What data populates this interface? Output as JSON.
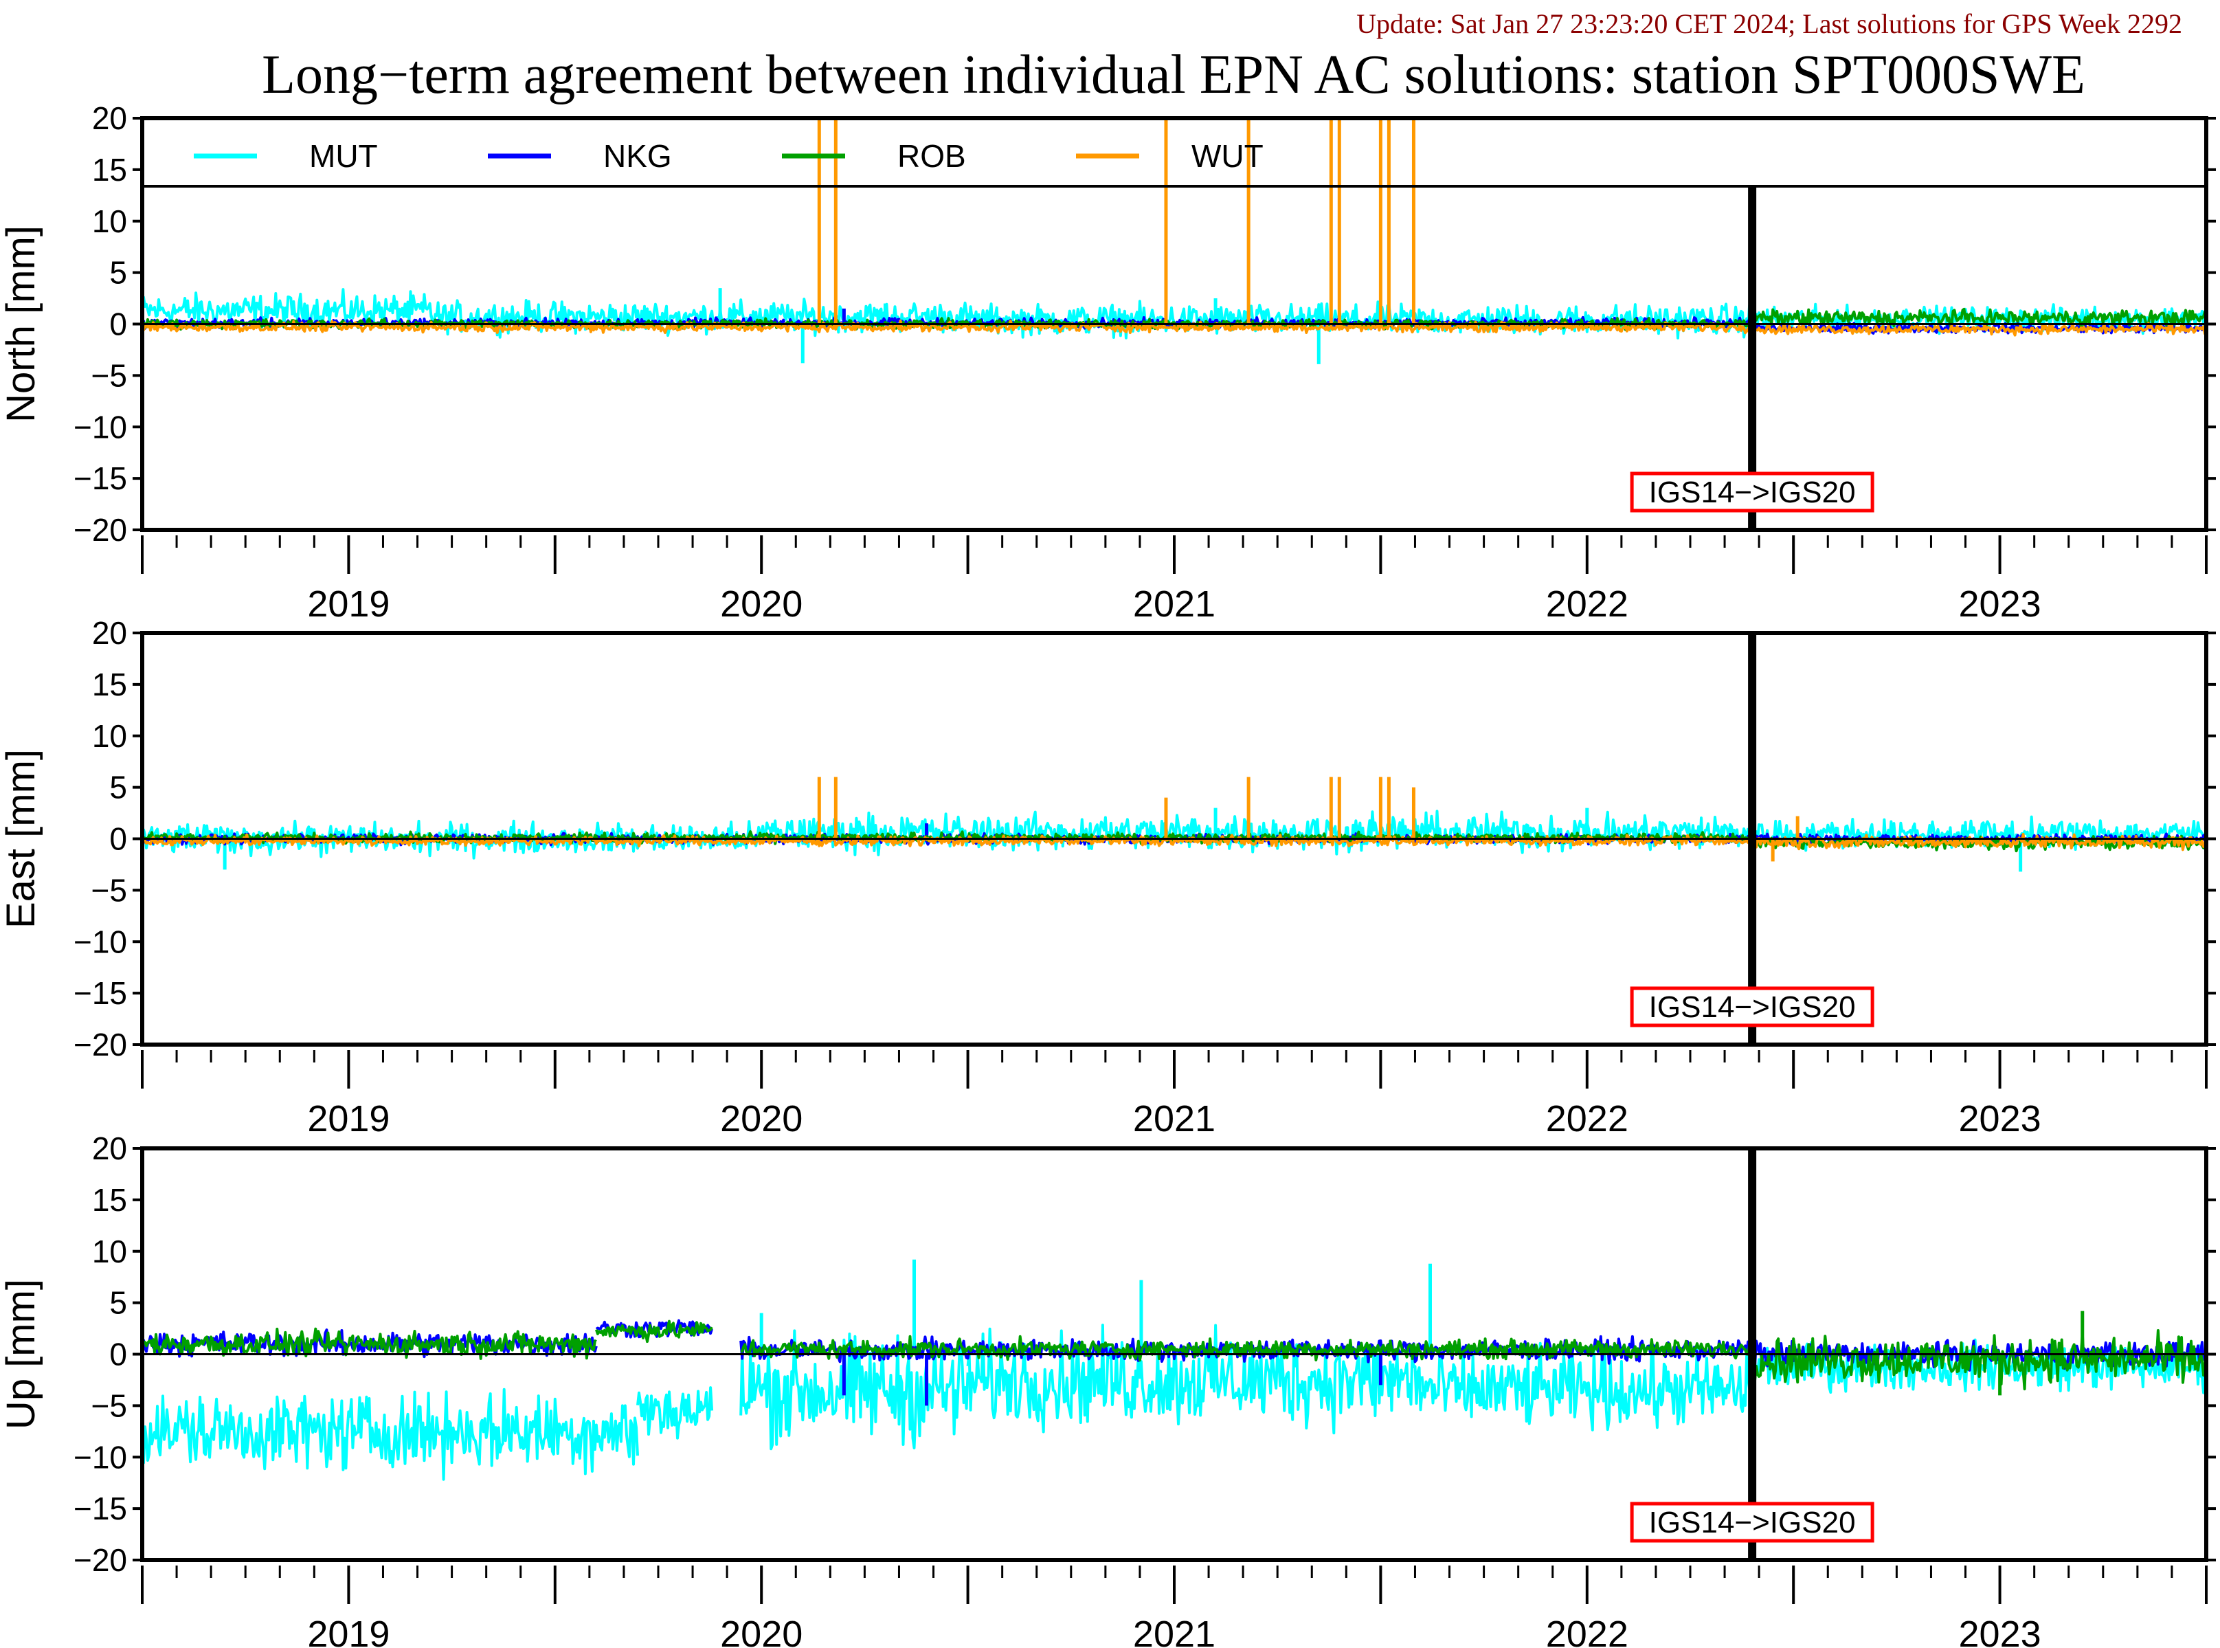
{
  "update_text": "Update: Sat Jan 27 23:23:20 CET 2024; Last solutions for GPS Week 2292",
  "title": "Long−term agreement between individual EPN AC solutions: station SPT000SWE",
  "colors": {
    "MUT": "#00ffff",
    "NKG": "#0000ff",
    "ROB": "#00a000",
    "WUT": "#ff9900",
    "update_text": "#8b0000",
    "marker_box": "#ff0000"
  },
  "legend": [
    {
      "name": "MUT",
      "color": "#00ffff"
    },
    {
      "name": "NKG",
      "color": "#0000ff"
    },
    {
      "name": "ROB",
      "color": "#00a000"
    },
    {
      "name": "WUT",
      "color": "#ff9900"
    }
  ],
  "chart_data": [
    {
      "type": "line",
      "ylabel": "North [mm]",
      "xlabel": "",
      "xlim": [
        2018.5,
        2023.5
      ],
      "ylim": [
        -20,
        20
      ],
      "yticks": [
        "20",
        "15",
        "10",
        "5",
        "0",
        "−5",
        "−10",
        "−15",
        "−20"
      ],
      "xticks": [
        "2019",
        "2020",
        "2021",
        "2022",
        "2023"
      ],
      "annotation": {
        "text": "IGS14−>IGS20",
        "x": 2022.4
      },
      "legend_placement": "top",
      "series": [
        {
          "name": "MUT",
          "segments": [
            {
              "x": [
                2018.5,
                2019.2
              ],
              "y": [
                1.3,
                1.3
              ],
              "noise": 1.1
            },
            {
              "x": [
                2019.2,
                2020.5
              ],
              "y": [
                0.7,
                0.7
              ],
              "noise": 1.0
            },
            {
              "x": [
                2020.5,
                2022.4
              ],
              "y": [
                0.4,
                0.4
              ],
              "noise": 1.0
            },
            {
              "x": [
                2022.4,
                2023.5
              ],
              "y": [
                0.5,
                0.5
              ],
              "noise": 0.8
            }
          ],
          "spikes": [
            [
              2019.9,
              3.5
            ],
            [
              2020.1,
              -3.8
            ],
            [
              2021.35,
              -3.9
            ],
            [
              2020.3,
              2.0
            ],
            [
              2021.1,
              2.5
            ]
          ]
        },
        {
          "name": "NKG",
          "segments": [
            {
              "x": [
                2018.5,
                2022.4
              ],
              "y": [
                0.1,
                0.1
              ],
              "noise": 0.3
            },
            {
              "x": [
                2022.4,
                2023.5
              ],
              "y": [
                -0.4,
                -0.4
              ],
              "noise": 0.3
            }
          ],
          "spikes": [
            [
              2020.2,
              1.5
            ]
          ]
        },
        {
          "name": "ROB",
          "segments": [
            {
              "x": [
                2018.5,
                2022.4
              ],
              "y": [
                0.0,
                0.0
              ],
              "noise": 0.3
            },
            {
              "x": [
                2022.4,
                2023.5
              ],
              "y": [
                0.6,
                0.6
              ],
              "noise": 0.5
            }
          ],
          "spikes": []
        },
        {
          "name": "WUT",
          "segments": [
            {
              "x": [
                2018.5,
                2022.4
              ],
              "y": [
                -0.3,
                -0.3
              ],
              "noise": 0.3
            },
            {
              "x": [
                2022.4,
                2023.5
              ],
              "y": [
                -0.5,
                -0.5
              ],
              "noise": 0.3
            }
          ],
          "spikes": [
            [
              2020.14,
              25
            ],
            [
              2020.18,
              25
            ],
            [
              2020.98,
              25
            ],
            [
              2021.18,
              25
            ],
            [
              2021.38,
              25
            ],
            [
              2021.4,
              25
            ],
            [
              2021.5,
              25
            ],
            [
              2021.52,
              25
            ],
            [
              2021.58,
              25
            ]
          ]
        }
      ]
    },
    {
      "type": "line",
      "ylabel": "East [mm]",
      "xlabel": "",
      "xlim": [
        2018.5,
        2023.5
      ],
      "ylim": [
        -20,
        20
      ],
      "yticks": [
        "20",
        "15",
        "10",
        "5",
        "0",
        "−5",
        "−10",
        "−15",
        "−20"
      ],
      "xticks": [
        "2019",
        "2020",
        "2021",
        "2022",
        "2023"
      ],
      "annotation": {
        "text": "IGS14−>IGS20",
        "x": 2022.4
      },
      "series": [
        {
          "name": "MUT",
          "segments": [
            {
              "x": [
                2018.5,
                2020.0
              ],
              "y": [
                0.0,
                0.0
              ],
              "noise": 1.0
            },
            {
              "x": [
                2020.0,
                2022.4
              ],
              "y": [
                0.6,
                0.6
              ],
              "noise": 1.2
            },
            {
              "x": [
                2022.4,
                2023.5
              ],
              "y": [
                0.5,
                0.5
              ],
              "noise": 0.9
            }
          ],
          "spikes": [
            [
              2018.7,
              -3.0
            ],
            [
              2023.05,
              -3.2
            ],
            [
              2021.1,
              3.0
            ],
            [
              2022.0,
              3.0
            ]
          ]
        },
        {
          "name": "NKG",
          "segments": [
            {
              "x": [
                2018.5,
                2023.5
              ],
              "y": [
                0.0,
                0.0
              ],
              "noise": 0.3
            }
          ],
          "spikes": [
            [
              2020.4,
              1.5
            ]
          ]
        },
        {
          "name": "ROB",
          "segments": [
            {
              "x": [
                2018.5,
                2022.4
              ],
              "y": [
                0.1,
                0.1
              ],
              "noise": 0.3
            },
            {
              "x": [
                2022.4,
                2023.5
              ],
              "y": [
                -0.4,
                -0.4
              ],
              "noise": 0.4
            }
          ],
          "spikes": []
        },
        {
          "name": "WUT",
          "segments": [
            {
              "x": [
                2018.5,
                2022.4
              ],
              "y": [
                -0.2,
                -0.2
              ],
              "noise": 0.3
            },
            {
              "x": [
                2022.4,
                2023.5
              ],
              "y": [
                -0.3,
                -0.3
              ],
              "noise": 0.4
            }
          ],
          "spikes": [
            [
              2020.14,
              6
            ],
            [
              2020.18,
              6
            ],
            [
              2020.98,
              4
            ],
            [
              2021.18,
              6
            ],
            [
              2021.38,
              6
            ],
            [
              2021.4,
              6
            ],
            [
              2021.5,
              6
            ],
            [
              2021.52,
              6
            ],
            [
              2021.58,
              5
            ],
            [
              2022.51,
              2.2
            ],
            [
              2022.45,
              -2.2
            ]
          ]
        }
      ]
    },
    {
      "type": "line",
      "ylabel": "Up [mm]",
      "xlabel": "",
      "xlim": [
        2018.5,
        2023.5
      ],
      "ylim": [
        -20,
        20
      ],
      "yticks": [
        "20",
        "15",
        "10",
        "5",
        "0",
        "−5",
        "−10",
        "−15",
        "−20"
      ],
      "xticks": [
        "2019",
        "2020",
        "2021",
        "2022",
        "2023"
      ],
      "annotation": {
        "text": "IGS14−>IGS20",
        "x": 2022.4
      },
      "series": [
        {
          "name": "MUT",
          "segments": [
            {
              "x": [
                2018.5,
                2019.7
              ],
              "y": [
                -7.5,
                -7.5
              ],
              "noise": 2.5
            },
            {
              "x": [
                2019.7,
                2019.88
              ],
              "y": [
                -5.5,
                -5.5
              ],
              "noise": 2.0
            },
            {
              "x": [
                2019.95,
                2020.5
              ],
              "y": [
                -3.5,
                -3.5
              ],
              "noise": 3.5
            },
            {
              "x": [
                2020.5,
                2021.6
              ],
              "y": [
                -2.5,
                -2.5
              ],
              "noise": 3.0
            },
            {
              "x": [
                2021.6,
                2022.4
              ],
              "y": [
                -3.5,
                -3.5
              ],
              "noise": 2.5
            },
            {
              "x": [
                2022.4,
                2023.5
              ],
              "y": [
                -1.2,
                -1.2
              ],
              "noise": 1.5
            }
          ],
          "spikes": [
            [
              2020.37,
              9.2
            ],
            [
              2020.92,
              7.2
            ],
            [
              2021.62,
              8.8
            ],
            [
              2020.0,
              4.0
            ]
          ]
        },
        {
          "name": "NKG",
          "segments": [
            {
              "x": [
                2018.5,
                2019.6
              ],
              "y": [
                1.0,
                1.0
              ],
              "noise": 0.8
            },
            {
              "x": [
                2019.6,
                2019.88
              ],
              "y": [
                2.5,
                2.5
              ],
              "noise": 0.6
            },
            {
              "x": [
                2019.95,
                2022.4
              ],
              "y": [
                0.4,
                0.4
              ],
              "noise": 0.7
            },
            {
              "x": [
                2022.4,
                2023.5
              ],
              "y": [
                0.0,
                0.0
              ],
              "noise": 0.8
            }
          ],
          "spikes": [
            [
              2020.2,
              -4.0
            ],
            [
              2020.4,
              -5.0
            ],
            [
              2021.5,
              -3.0
            ]
          ]
        },
        {
          "name": "ROB",
          "segments": [
            {
              "x": [
                2018.5,
                2019.6
              ],
              "y": [
                1.0,
                1.0
              ],
              "noise": 0.8
            },
            {
              "x": [
                2019.6,
                2019.88
              ],
              "y": [
                2.3,
                2.3
              ],
              "noise": 0.6
            },
            {
              "x": [
                2019.95,
                2022.4
              ],
              "y": [
                0.5,
                0.5
              ],
              "noise": 0.6
            },
            {
              "x": [
                2022.4,
                2023.5
              ],
              "y": [
                -0.5,
                -0.5
              ],
              "noise": 1.5
            }
          ],
          "spikes": [
            [
              2023.2,
              4.2
            ],
            [
              2023.0,
              -4.0
            ]
          ]
        }
      ]
    }
  ]
}
